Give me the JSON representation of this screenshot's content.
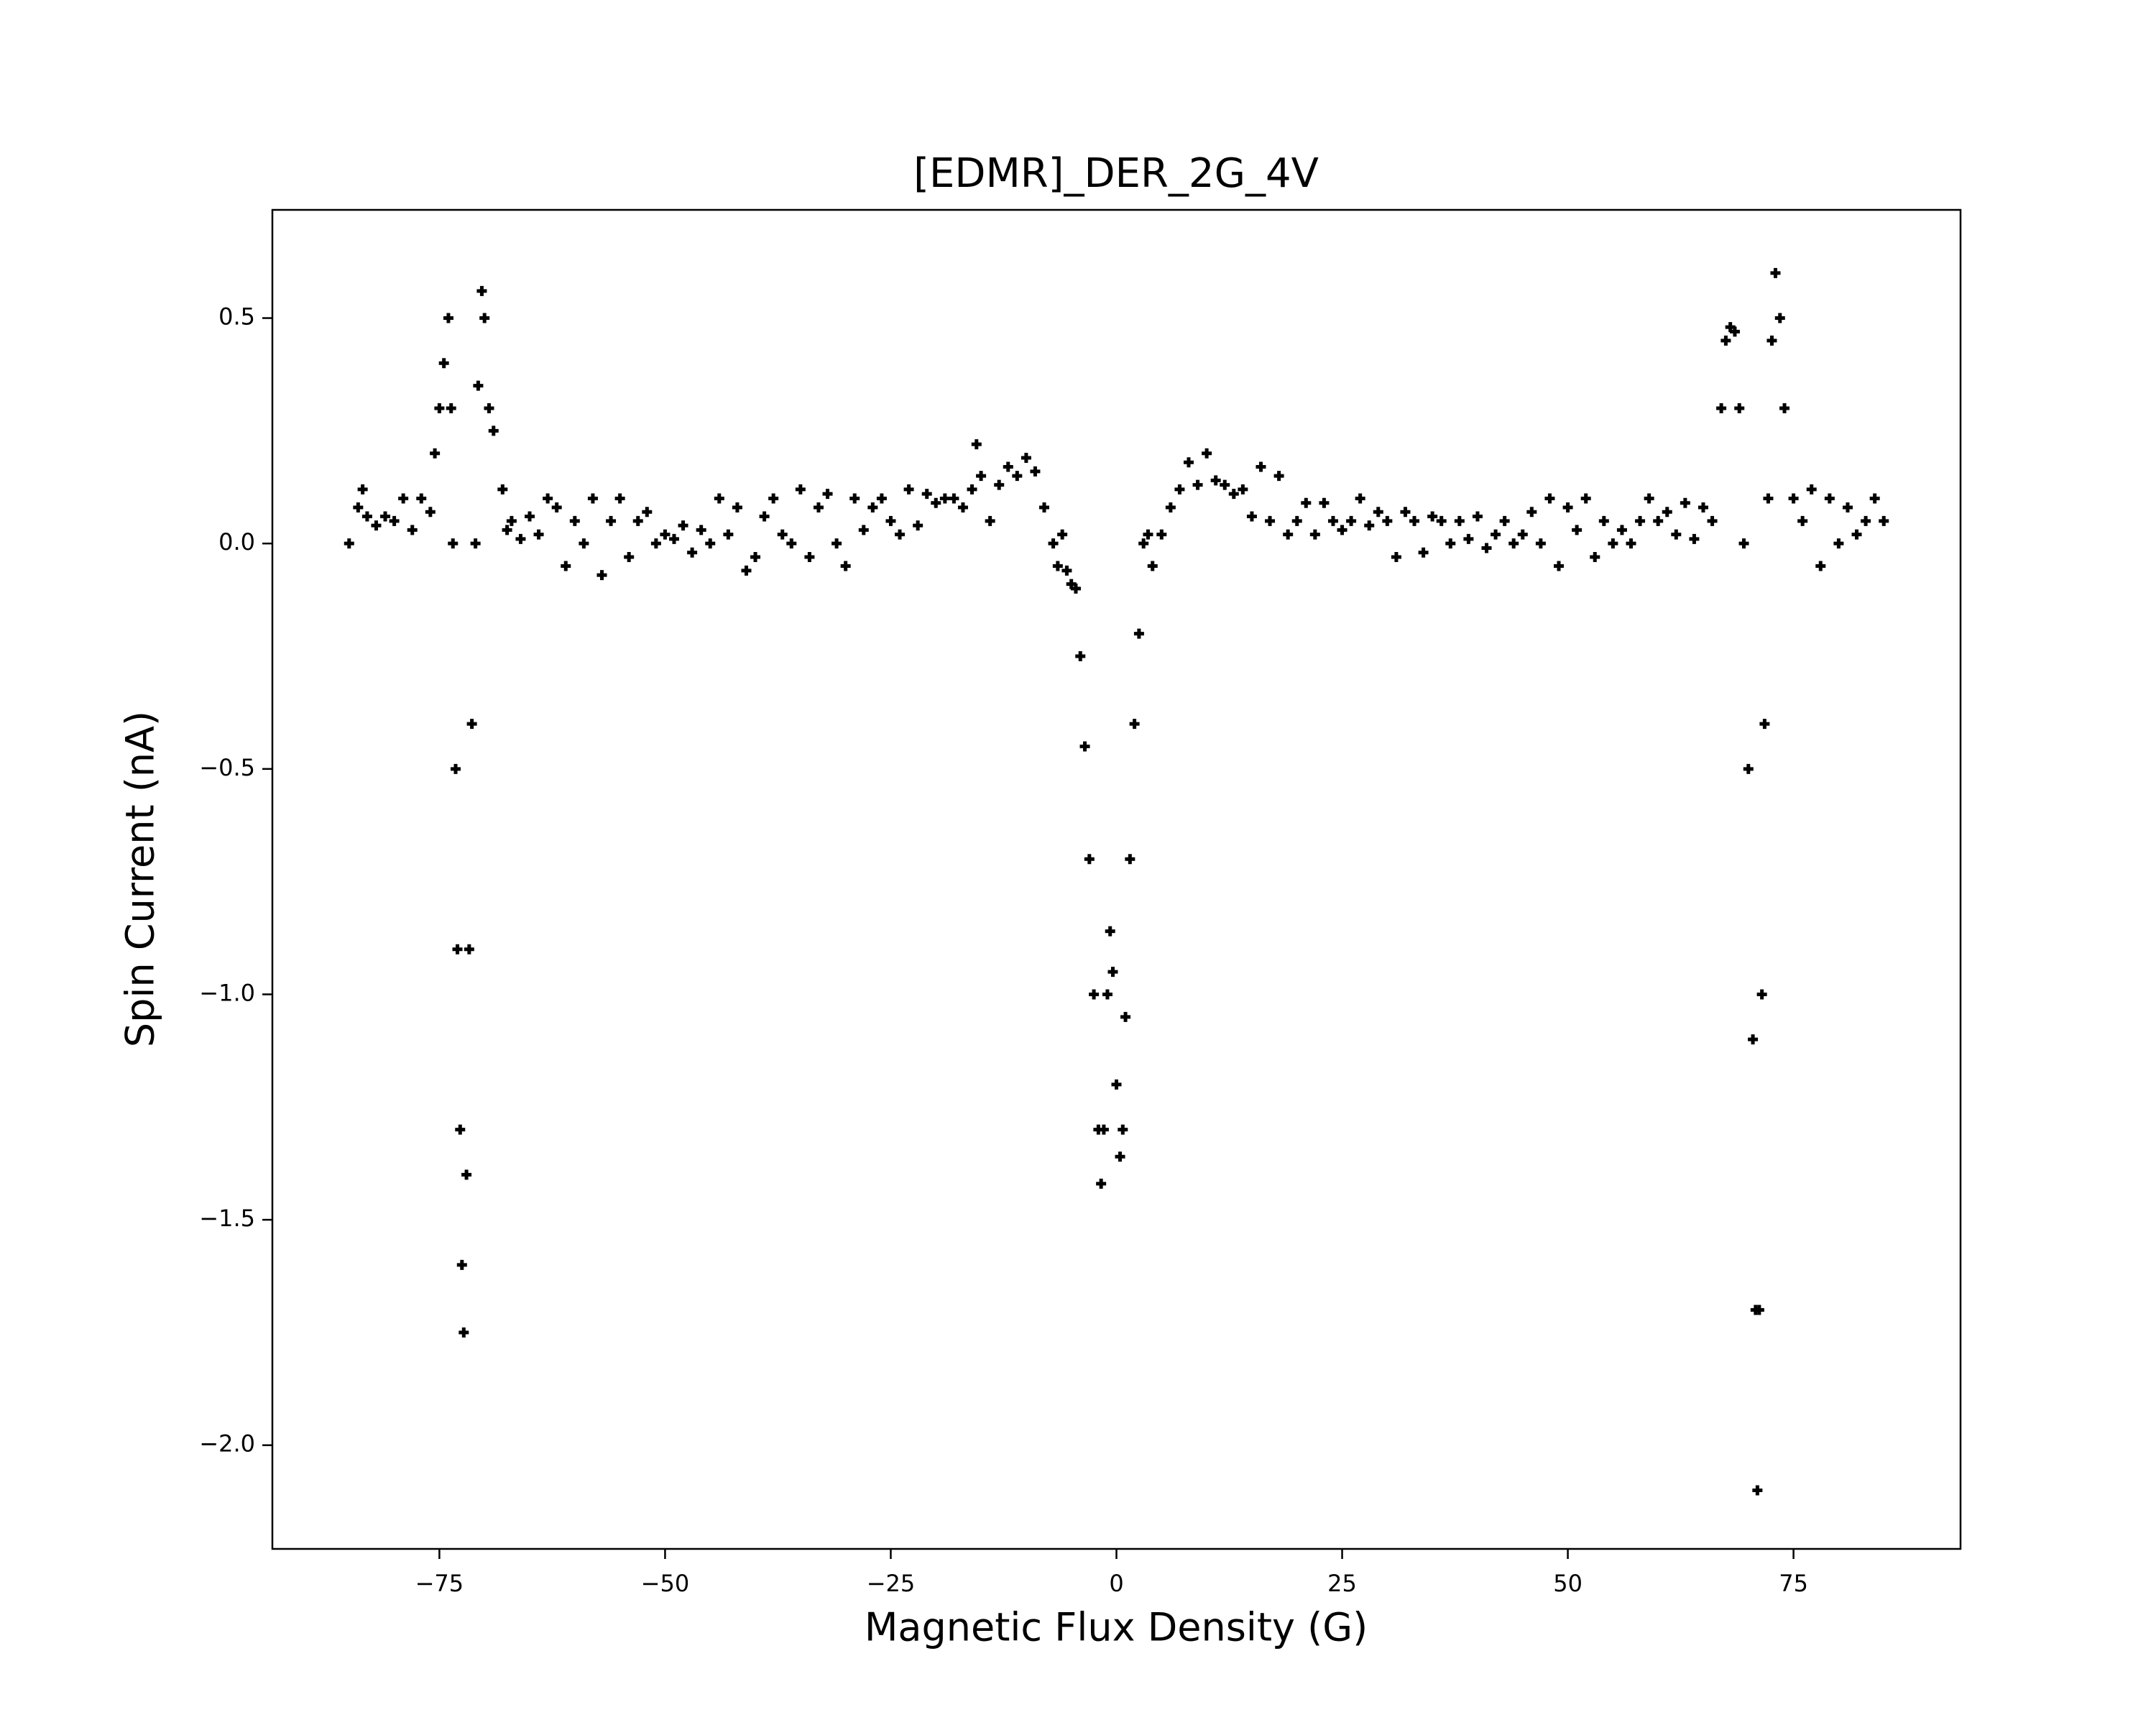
{
  "chart_data": {
    "type": "scatter",
    "title": "[EDMR]_DER_2G_4V",
    "x_label": "Magnetic Flux Density (G)",
    "y_label": "Spin Current (nA)",
    "marker": "plus",
    "color": "#000000",
    "xlim": [
      -93.5,
      93.5
    ],
    "ylim": [
      -2.23,
      0.74
    ],
    "xticks": [
      {
        "value": -75,
        "label": "−75"
      },
      {
        "value": -50,
        "label": "−50"
      },
      {
        "value": -25,
        "label": "−25"
      },
      0,
      25,
      50,
      75
    ],
    "yticks": [
      0.5,
      {
        "value": 0.0,
        "label": "0.0"
      },
      {
        "value": -0.5,
        "label": "−0.5"
      },
      {
        "value": -1.0,
        "label": "−1.0"
      },
      {
        "value": -1.5,
        "label": "−1.5"
      },
      {
        "value": -2.0,
        "label": "−2.0"
      }
    ],
    "x": [
      -85,
      -84,
      -83.5,
      -83,
      -82,
      -81,
      -80,
      -79,
      -78,
      -77,
      -76,
      -75.5,
      -75,
      -74.5,
      -74,
      -73.7,
      -73.5,
      -73.2,
      -73,
      -72.7,
      -72.5,
      -72.3,
      -72,
      -71.7,
      -71.4,
      -71,
      -70.7,
      -70.3,
      -70,
      -69.5,
      -69,
      -68,
      -67.5,
      -67,
      -66,
      -65,
      -64,
      -63,
      -62,
      -61,
      -60,
      -59,
      -58,
      -57,
      -56,
      -55,
      -54,
      -53,
      -52,
      -51,
      -50,
      -49,
      -48,
      -47,
      -46,
      -45,
      -44,
      -43,
      -42,
      -41,
      -40,
      -39,
      -38,
      -37,
      -36,
      -35,
      -34,
      -33,
      -32,
      -31,
      -30,
      -29,
      -28,
      -27,
      -26,
      -25,
      -24,
      -23,
      -22,
      -21,
      -20,
      -19,
      -18,
      -17,
      -16,
      -15.5,
      -15,
      -14,
      -13,
      -12,
      -11,
      -10,
      -9,
      -8,
      -7,
      -6.5,
      -6,
      -5.5,
      -5,
      -4.5,
      -4,
      -3.5,
      -3,
      -2.5,
      -2,
      -1.7,
      -1.4,
      -1,
      -0.7,
      -0.4,
      0,
      0.4,
      0.7,
      1,
      1.5,
      2,
      2.5,
      3,
      3.5,
      4,
      5,
      6,
      7,
      8,
      9,
      10,
      11,
      12,
      13,
      14,
      15,
      16,
      17,
      18,
      19,
      20,
      21,
      22,
      23,
      24,
      25,
      26,
      27,
      28,
      29,
      30,
      31,
      32,
      33,
      34,
      35,
      36,
      37,
      38,
      39,
      40,
      41,
      42,
      43,
      44,
      45,
      46,
      47,
      48,
      49,
      50,
      51,
      52,
      53,
      54,
      55,
      56,
      57,
      58,
      59,
      60,
      61,
      62,
      63,
      64,
      65,
      66,
      67,
      67.5,
      68,
      68.5,
      69,
      69.5,
      70,
      70.5,
      70.8,
      71,
      71.2,
      71.5,
      71.8,
      72.2,
      72.6,
      73,
      73.5,
      74,
      75,
      76,
      77,
      78,
      79,
      80,
      81,
      82,
      83,
      84,
      85
    ],
    "values": [
      0.0,
      0.08,
      0.12,
      0.06,
      0.04,
      0.06,
      0.05,
      0.1,
      0.03,
      0.1,
      0.07,
      0.2,
      0.3,
      0.4,
      0.5,
      0.3,
      0.0,
      -0.5,
      -0.9,
      -1.3,
      -1.6,
      -1.75,
      -1.4,
      -0.9,
      -0.4,
      0.0,
      0.35,
      0.56,
      0.5,
      0.3,
      0.25,
      0.12,
      0.03,
      0.05,
      0.01,
      0.06,
      0.02,
      0.1,
      0.08,
      -0.05,
      0.05,
      0.0,
      0.1,
      -0.07,
      0.05,
      0.1,
      -0.03,
      0.05,
      0.07,
      0.0,
      0.02,
      0.01,
      0.04,
      -0.02,
      0.03,
      0.0,
      0.1,
      0.02,
      0.08,
      -0.06,
      -0.03,
      0.06,
      0.1,
      0.02,
      0.0,
      0.12,
      -0.03,
      0.08,
      0.11,
      0.0,
      -0.05,
      0.1,
      0.03,
      0.08,
      0.1,
      0.05,
      0.02,
      0.12,
      0.04,
      0.11,
      0.09,
      0.1,
      0.1,
      0.08,
      0.12,
      0.22,
      0.15,
      0.05,
      0.13,
      0.17,
      0.15,
      0.19,
      0.16,
      0.08,
      0.0,
      -0.05,
      0.02,
      -0.06,
      -0.09,
      -0.1,
      -0.25,
      -0.45,
      -0.7,
      -1.0,
      -1.3,
      -1.42,
      -1.3,
      -1.0,
      -0.86,
      -0.95,
      -1.2,
      -1.36,
      -1.3,
      -1.05,
      -0.7,
      -0.4,
      -0.2,
      0.0,
      0.02,
      -0.05,
      0.02,
      0.08,
      0.12,
      0.18,
      0.13,
      0.2,
      0.14,
      0.13,
      0.11,
      0.12,
      0.06,
      0.17,
      0.05,
      0.15,
      0.02,
      0.05,
      0.09,
      0.02,
      0.09,
      0.05,
      0.03,
      0.05,
      0.1,
      0.04,
      0.07,
      0.05,
      -0.03,
      0.07,
      0.05,
      -0.02,
      0.06,
      0.05,
      0.0,
      0.05,
      0.01,
      0.06,
      -0.01,
      0.02,
      0.05,
      0.0,
      0.02,
      0.07,
      0.0,
      0.1,
      -0.05,
      0.08,
      0.03,
      0.1,
      -0.03,
      0.05,
      0.0,
      0.03,
      0.0,
      0.05,
      0.1,
      0.05,
      0.07,
      0.02,
      0.09,
      0.01,
      0.08,
      0.05,
      0.3,
      0.45,
      0.48,
      0.47,
      0.3,
      0.0,
      -0.5,
      -1.1,
      -1.7,
      -2.1,
      -1.7,
      -1.0,
      -0.4,
      0.1,
      0.45,
      0.6,
      0.5,
      0.3,
      0.1,
      0.05,
      0.12,
      -0.05,
      0.1,
      0.0,
      0.08,
      0.02,
      0.05,
      0.1,
      0.05
    ]
  }
}
